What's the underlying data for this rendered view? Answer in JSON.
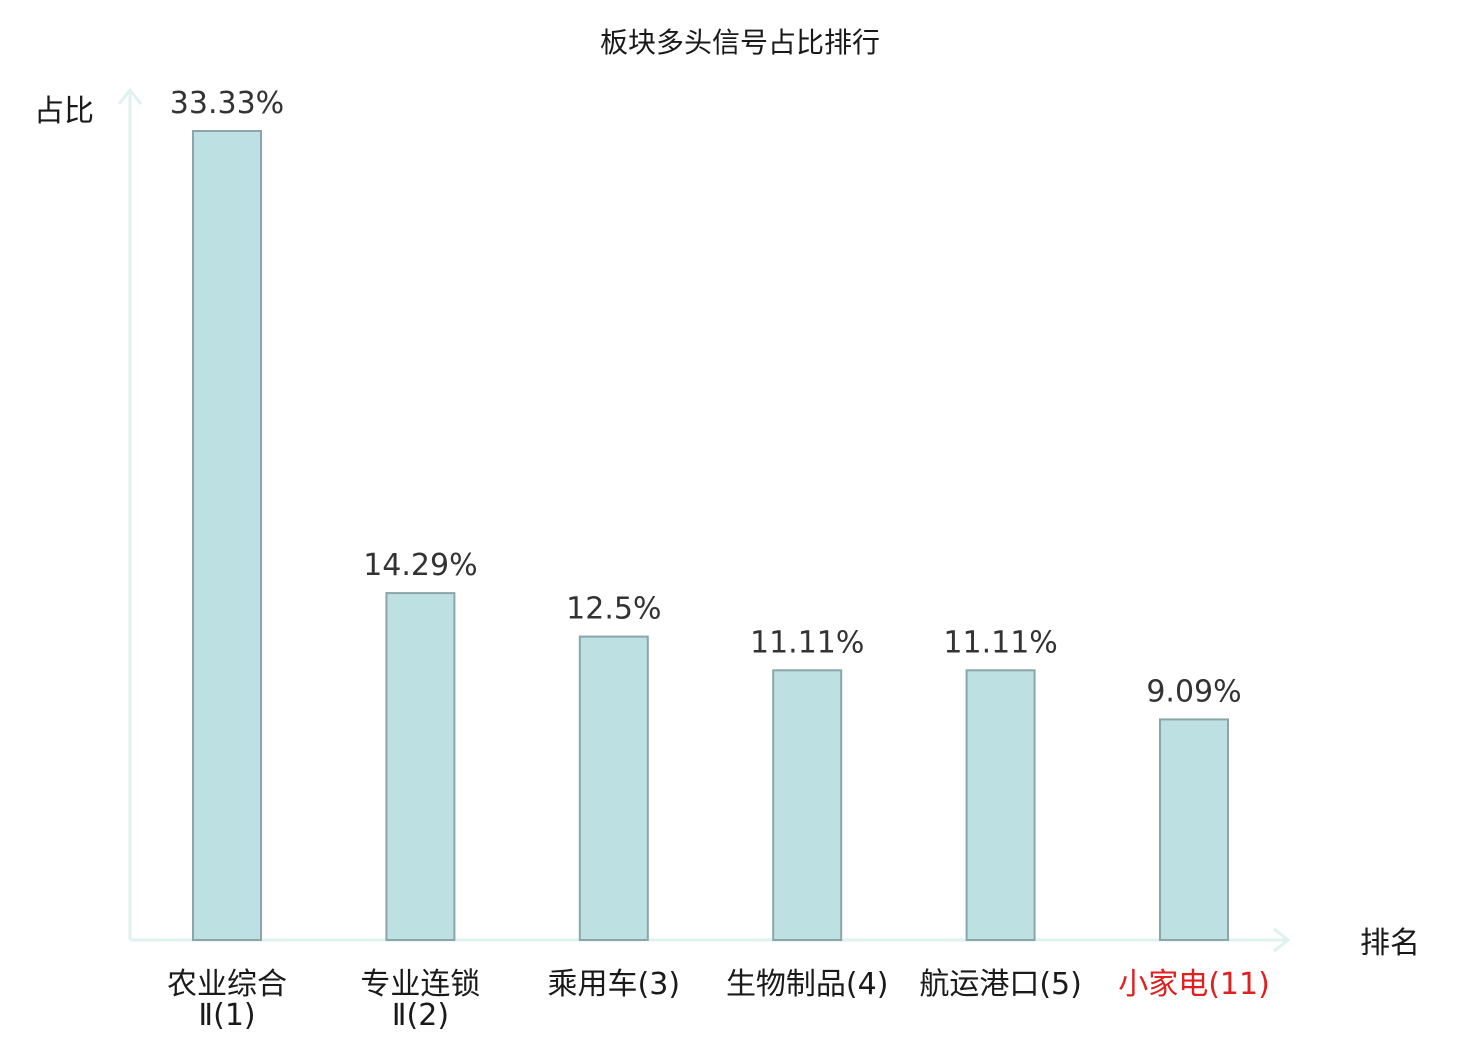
{
  "chart_data": {
    "type": "bar",
    "title": "板块多头信号占比排行",
    "ylabel": "占比",
    "xlabel": "排名",
    "ylim": [
      0,
      35
    ],
    "grid": false,
    "categories": [
      {
        "name_line1": "农业综合",
        "name_line2": "Ⅱ(1)",
        "highlight": false
      },
      {
        "name_line1": "专业连锁",
        "name_line2": "Ⅱ(2)",
        "highlight": false
      },
      {
        "name_line1": "乘用车(3)",
        "name_line2": "",
        "highlight": false
      },
      {
        "name_line1": "生物制品(4)",
        "name_line2": "",
        "highlight": false
      },
      {
        "name_line1": "航运港口(5)",
        "name_line2": "",
        "highlight": false
      },
      {
        "name_line1": "小家电(11)",
        "name_line2": "",
        "highlight": true
      }
    ],
    "values": [
      33.33,
      14.29,
      12.5,
      11.11,
      11.11,
      9.09
    ],
    "value_labels": [
      "33.33%",
      "14.29%",
      "12.5%",
      "11.11%",
      "11.11%",
      "9.09%"
    ],
    "colors": {
      "bar_fill": "#bde0e3",
      "bar_stroke": "#8aa6a8",
      "axis": "#dff2ef",
      "highlight_text": "#e02020"
    }
  }
}
